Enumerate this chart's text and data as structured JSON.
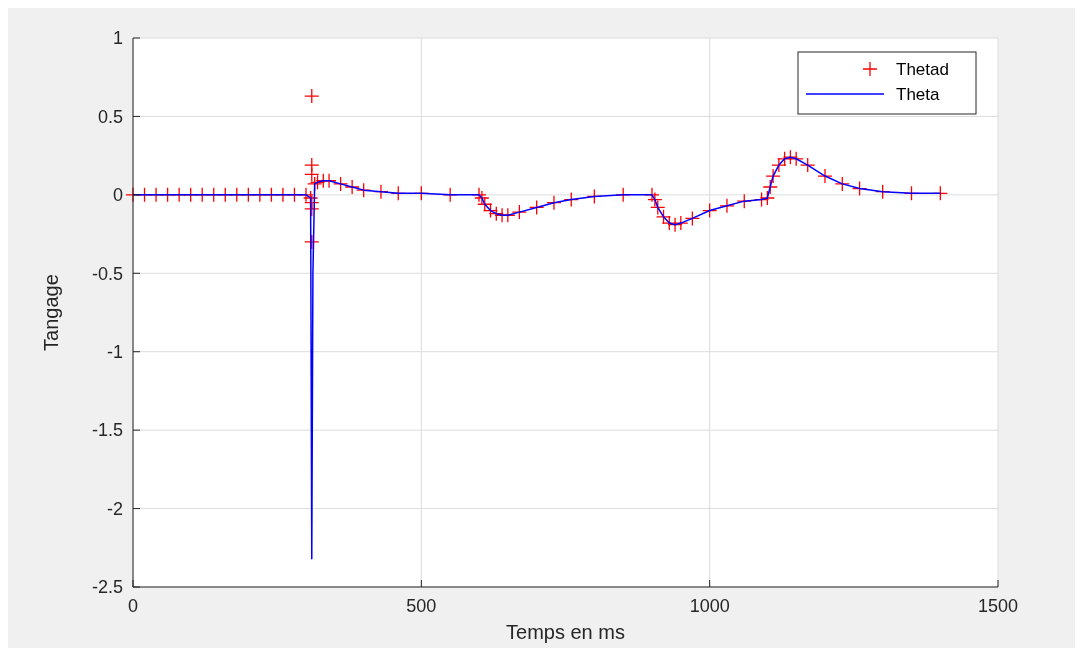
{
  "chart_data": {
    "type": "line",
    "xlabel": "Temps en ms",
    "ylabel": "Tangage",
    "xlim": [
      0,
      1500
    ],
    "xticks": [
      0,
      500,
      1000,
      1500
    ],
    "ylim": [
      -2.5,
      1
    ],
    "yticks": [
      -2.5,
      -2,
      -1.5,
      -1,
      -0.5,
      0,
      0.5,
      1
    ],
    "grid": true,
    "legend": "top right",
    "series": [
      {
        "name": "Thetad",
        "type": "scatter",
        "marker": "cross",
        "color": "#ff0000",
        "x": [
          0,
          20,
          40,
          60,
          80,
          100,
          120,
          140,
          160,
          180,
          200,
          220,
          240,
          260,
          280,
          300,
          308,
          310,
          310,
          310,
          310,
          310,
          310,
          315,
          320,
          330,
          340,
          360,
          380,
          400,
          430,
          460,
          500,
          550,
          600,
          605,
          610,
          620,
          630,
          640,
          650,
          670,
          700,
          730,
          760,
          800,
          850,
          900,
          905,
          910,
          920,
          930,
          940,
          950,
          970,
          1000,
          1030,
          1060,
          1090,
          1100,
          1105,
          1110,
          1120,
          1130,
          1140,
          1150,
          1170,
          1200,
          1230,
          1260,
          1300,
          1350,
          1400
        ],
        "values": [
          0,
          0,
          0,
          0,
          0,
          0,
          0,
          0,
          0,
          0,
          0,
          0,
          0,
          0,
          0,
          0,
          -0.02,
          0.63,
          0.19,
          0.13,
          -0.05,
          -0.09,
          -0.3,
          0.07,
          0.08,
          0.09,
          0.09,
          0.07,
          0.05,
          0.03,
          0.02,
          0.01,
          0.01,
          0,
          0,
          -0.02,
          -0.06,
          -0.1,
          -0.12,
          -0.13,
          -0.13,
          -0.11,
          -0.08,
          -0.05,
          -0.03,
          -0.01,
          0,
          0,
          -0.03,
          -0.08,
          -0.14,
          -0.18,
          -0.19,
          -0.18,
          -0.15,
          -0.1,
          -0.07,
          -0.04,
          -0.03,
          -0.02,
          0.05,
          0.12,
          0.19,
          0.23,
          0.24,
          0.23,
          0.19,
          0.12,
          0.07,
          0.04,
          0.02,
          0.01,
          0.01
        ]
      },
      {
        "name": "Theta",
        "marker": "none",
        "color": "#0000ff",
        "x": [
          0,
          100,
          200,
          300,
          308,
          310,
          312,
          315,
          320,
          330,
          340,
          360,
          380,
          400,
          430,
          460,
          500,
          550,
          600,
          605,
          610,
          620,
          630,
          640,
          650,
          670,
          700,
          730,
          760,
          800,
          850,
          900,
          905,
          910,
          920,
          930,
          940,
          950,
          970,
          1000,
          1030,
          1060,
          1090,
          1100,
          1105,
          1110,
          1120,
          1130,
          1140,
          1150,
          1170,
          1200,
          1230,
          1260,
          1300,
          1350,
          1400
        ],
        "values": [
          0,
          0,
          0,
          0,
          -0.02,
          -2.32,
          -0.5,
          0.07,
          0.08,
          0.09,
          0.09,
          0.07,
          0.05,
          0.03,
          0.02,
          0.01,
          0.01,
          0,
          0,
          -0.02,
          -0.06,
          -0.1,
          -0.12,
          -0.13,
          -0.13,
          -0.11,
          -0.08,
          -0.05,
          -0.03,
          -0.01,
          0,
          0,
          -0.03,
          -0.08,
          -0.14,
          -0.18,
          -0.19,
          -0.18,
          -0.15,
          -0.1,
          -0.07,
          -0.04,
          -0.03,
          -0.02,
          0.05,
          0.12,
          0.19,
          0.23,
          0.24,
          0.23,
          0.19,
          0.12,
          0.07,
          0.04,
          0.02,
          0.01,
          0.01
        ]
      }
    ]
  }
}
